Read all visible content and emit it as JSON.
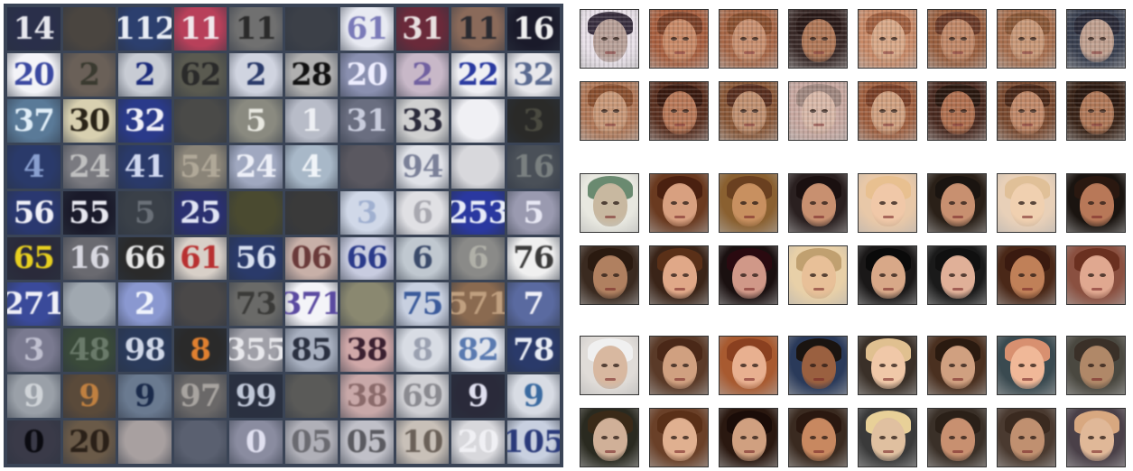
{
  "svhn_tiles": [
    "14",
    "",
    "112",
    "11",
    "11",
    "",
    "61",
    "31",
    "11",
    "16",
    "20",
    "2",
    "2",
    "62",
    "2",
    "28",
    "20",
    "2",
    "22",
    "32",
    "37",
    "30",
    "32",
    "",
    "5",
    "1",
    "31",
    "33",
    "",
    "3",
    "4",
    "24",
    "41",
    "54",
    "24",
    "4",
    "",
    "94",
    "",
    "16",
    "56",
    "55",
    "5",
    "25",
    "",
    "",
    "3",
    "6",
    "253",
    "5",
    "65",
    "16",
    "66",
    "61",
    "56",
    "06",
    "66",
    "6",
    "6",
    "76",
    "271",
    "",
    "2",
    "",
    "73",
    "371",
    "",
    "75",
    "571",
    "7",
    "3",
    "48",
    "98",
    "8",
    "355",
    "85",
    "38",
    "8",
    "82",
    "78",
    "9",
    "9",
    "9",
    "97",
    "99",
    "",
    "38",
    "69",
    "9",
    "9",
    "0",
    "20",
    "",
    "",
    "0",
    "05",
    "05",
    "10",
    "20",
    "105"
  ],
  "tile_colors": [
    [
      "#2a2f4a",
      "#e8e8ee"
    ],
    [
      "#4a4540",
      "#2a2622"
    ],
    [
      "#2c3f6e",
      "#e8ecf4"
    ],
    [
      "#b8405a",
      "#f0e8ec"
    ],
    [
      "#707070",
      "#2a2a2a"
    ],
    [
      "#3c4048",
      "#6a6a6a"
    ],
    [
      "#e8eaf2",
      "#7a7ab8"
    ],
    [
      "#6a2a3a",
      "#e8e0e0"
    ],
    [
      "#8a6a5a",
      "#2a2a30"
    ],
    [
      "#1a1a2a",
      "#f0f0f0"
    ],
    [
      "#f4f4f8",
      "#3a48a0"
    ],
    [
      "#6a6058",
      "#3a3a30"
    ],
    [
      "#c8ccd4",
      "#1a2a7a"
    ],
    [
      "#5a5a50",
      "#2a2a2a"
    ],
    [
      "#d0d4e0",
      "#2a3a6a"
    ],
    [
      "#b0b0b0",
      "#111111"
    ],
    [
      "#8a90b0",
      "#eeeeff"
    ],
    [
      "#c8b8c8",
      "#7060a0"
    ],
    [
      "#f0f0f4",
      "#2a3aa0"
    ],
    [
      "#e8e8ec",
      "#5a6a90"
    ],
    [
      "#5a7a98",
      "#e0eef8"
    ],
    [
      "#d8d0b0",
      "#2a2418"
    ],
    [
      "#2a3a8a",
      "#f0f0f8"
    ],
    [
      "#4a4a48",
      "#2a2a28"
    ],
    [
      "#8a8a80",
      "#e8e8e0"
    ],
    [
      "#b8bcc8",
      "#eef0f4"
    ],
    [
      "#6a6e80",
      "#c8ccdc"
    ],
    [
      "#d0d0d0",
      "#2a2a3a"
    ],
    [
      "#f0f0f4",
      "#ffffff"
    ],
    [
      "#2a2a28",
      "#4a4a40"
    ],
    [
      "#2a3a6a",
      "#8aa0d0"
    ],
    [
      "#7a7a80",
      "#c0c0c0"
    ],
    [
      "#2a3a6a",
      "#d0d8f0"
    ],
    [
      "#8a8478",
      "#b0a898"
    ],
    [
      "#a0a8c0",
      "#eef0f8"
    ],
    [
      "#a8b8c8",
      "#f0f4f8"
    ],
    [
      "#5a5860",
      "#7a7880"
    ],
    [
      "#e0e2e8",
      "#7a8098"
    ],
    [
      "#d8d8dc",
      "#f4f4f6"
    ],
    [
      "#4a5058",
      "#7a8080"
    ],
    [
      "#2a3870",
      "#f0f0f8"
    ],
    [
      "#1a1a2a",
      "#e8e8f0"
    ],
    [
      "#3a4048",
      "#6a7078"
    ],
    [
      "#2a3070",
      "#e0e4f4"
    ],
    [
      "#4a4a30",
      "#6a6a40"
    ],
    [
      "#3a3a3a",
      "#505050"
    ],
    [
      "#d0d8e8",
      "#a0b0d0"
    ],
    [
      "#e0e0e4",
      "#a8a8b0"
    ],
    [
      "#2a38a0",
      "#e8ecf8"
    ],
    [
      "#9a9ab0",
      "#e8e8f4"
    ],
    [
      "#2a2a3a",
      "#e8d020"
    ],
    [
      "#6a6a70",
      "#d8d8e0"
    ],
    [
      "#2a2a2a",
      "#e8e8e8"
    ],
    [
      "#d8d0c8",
      "#b83030"
    ],
    [
      "#2a3a6a",
      "#d8e0f0"
    ],
    [
      "#c8b0a8",
      "#6a3a3a"
    ],
    [
      "#c8cce0",
      "#2a3a8a"
    ],
    [
      "#c0c8d0",
      "#3a4a6a"
    ],
    [
      "#8a8a88",
      "#b0b0a8"
    ],
    [
      "#f0f0f0",
      "#3a3a3a"
    ],
    [
      "#3a4a9a",
      "#f0f0f8"
    ],
    [
      "#a0a8b0",
      "#c8ccd4"
    ],
    [
      "#8a98d0",
      "#f0f4fc"
    ],
    [
      "#4a4848",
      "#6a6868"
    ],
    [
      "#6a6a68",
      "#3a3a38"
    ],
    [
      "#f4f4f8",
      "#5a4aa0"
    ],
    [
      "#8a8870",
      "#6a6850"
    ],
    [
      "#c8d0e0",
      "#3a5a9a"
    ],
    [
      "#8a6a50",
      "#c0a080"
    ],
    [
      "#5a6aa0",
      "#f0f0f8"
    ],
    [
      "#7a7a90",
      "#c0c0d0"
    ],
    [
      "#3a4a3a",
      "#6a7a6a"
    ],
    [
      "#2a3a5a",
      "#d0d8e8"
    ],
    [
      "#2a2a2a",
      "#e08030"
    ],
    [
      "#a0a0a8",
      "#e8e8ec"
    ],
    [
      "#a8b0c0",
      "#2a3040"
    ],
    [
      "#d0a8a8",
      "#3a2030"
    ],
    [
      "#d8dce4",
      "#9aa0b0"
    ],
    [
      "#e0e4ec",
      "#5a7ab0"
    ],
    [
      "#2a3a6a",
      "#e8ecf4"
    ],
    [
      "#9aa0a8",
      "#d0d4d8"
    ],
    [
      "#5a4a3a",
      "#c08040"
    ],
    [
      "#6a7a90",
      "#1a2a4a"
    ],
    [
      "#6a6868",
      "#a8a4a0"
    ],
    [
      "#2a3040",
      "#c0c8d8"
    ],
    [
      "#5a5a58",
      "#7a7a78"
    ],
    [
      "#c8a8a8",
      "#8a6a6a"
    ],
    [
      "#d0d0d4",
      "#8a8a90"
    ],
    [
      "#2a2a3a",
      "#e0e0f0"
    ],
    [
      "#d8dce4",
      "#3a6aa0"
    ],
    [
      "#3a3a48",
      "#0a0a10"
    ],
    [
      "#6a5a48",
      "#2a2018"
    ],
    [
      "#a8a0a0",
      "#e0d8d8"
    ],
    [
      "#5a6070",
      "#8a98b0"
    ],
    [
      "#8a8ca0",
      "#e0e0f0"
    ],
    [
      "#b0b0b8",
      "#6a6a70"
    ],
    [
      "#c0c0c8",
      "#5a5a60"
    ],
    [
      "#c8c0b8",
      "#6a6058"
    ],
    [
      "#d8d8dc",
      "#f0f0f4"
    ],
    [
      "#c8d0e0",
      "#2a3a7a"
    ]
  ],
  "face_groups": [
    {
      "style": "noisy",
      "tiles": [
        [
          "#e8e0e8",
          "#b8a098",
          "#3a3040"
        ],
        [
          "#a86040",
          "#c88a68",
          "#7a4028"
        ],
        [
          "#a86848",
          "#c89070",
          "#8a5030"
        ],
        [
          "#3a2a28",
          "#b07858",
          "#2a1a18"
        ],
        [
          "#c88a68",
          "#d8a888",
          "#a06040"
        ],
        [
          "#9a6040",
          "#c08868",
          "#6a3a28"
        ],
        [
          "#a87050",
          "#c89878",
          "#8a5838"
        ],
        [
          "#3a4050",
          "#c0a090",
          "#2a2a38"
        ],
        [
          "#b07858",
          "#c89878",
          "#8a5030"
        ],
        [
          "#5a3020",
          "#b87858",
          "#3a1a10"
        ],
        [
          "#8a5838",
          "#c09070",
          "#5a3020"
        ],
        [
          "#c8a8a0",
          "#d8b8a8",
          "#a08880"
        ],
        [
          "#a06040",
          "#d0a080",
          "#7a4028"
        ],
        [
          "#4a2a20",
          "#b07050",
          "#2a1810"
        ],
        [
          "#7a4a30",
          "#c08868",
          "#4a2818"
        ],
        [
          "#3a2418",
          "#b07858",
          "#2a1810"
        ]
      ]
    },
    {
      "style": "smooth",
      "tiles": [
        [
          "#e8e8e0",
          "#c8b8a0",
          "#6a8a70"
        ],
        [
          "#6a3a20",
          "#d8a080",
          "#4a2010"
        ],
        [
          "#8a6030",
          "#c89060",
          "#6a4020"
        ],
        [
          "#2a2020",
          "#c89070",
          "#1a1010"
        ],
        [
          "#e8c8a8",
          "#f0c8a8",
          "#e8c090"
        ],
        [
          "#2a2018",
          "#c89070",
          "#1a1410"
        ],
        [
          "#e8d0b8",
          "#f0d0b0",
          "#e0c098"
        ],
        [
          "#1a1410",
          "#b87858",
          "#2a1810"
        ],
        [
          "#3a2a20",
          "#b08060",
          "#2a1a10"
        ],
        [
          "#3a2418",
          "#e0a888",
          "#5a3018"
        ],
        [
          "#1a1010",
          "#d09888",
          "#2a0a10"
        ],
        [
          "#e8d0a8",
          "#e8c098",
          "#c0a070"
        ],
        [
          "#1a1818",
          "#d8a888",
          "#0a0a0a"
        ],
        [
          "#1a1a1a",
          "#e0b098",
          "#101010"
        ],
        [
          "#4a2818",
          "#c08058",
          "#3a1a10"
        ],
        [
          "#8a5040",
          "#e0a890",
          "#6a3020"
        ]
      ]
    },
    {
      "style": "smooth",
      "tiles": [
        [
          "#e0dcd8",
          "#d8b8a0",
          "#f0f0f0"
        ],
        [
          "#5a3a28",
          "#d0a080",
          "#4a2818"
        ],
        [
          "#a85a30",
          "#e8b090",
          "#8a4020"
        ],
        [
          "#2a3a5a",
          "#9a6040",
          "#1a1410"
        ],
        [
          "#3a3028",
          "#f0c8a8",
          "#e0c090"
        ],
        [
          "#4a3020",
          "#d0a080",
          "#2a1a10"
        ],
        [
          "#3a4a50",
          "#f0b898",
          "#d89070"
        ],
        [
          "#4a4840",
          "#b08868",
          "#3a3028"
        ],
        [
          "#2a2a20",
          "#d0b098",
          "#3a2a18"
        ],
        [
          "#6a4028",
          "#e0b090",
          "#5a3018"
        ],
        [
          "#2a1810",
          "#d0a080",
          "#1a0c08"
        ],
        [
          "#3a2a20",
          "#c88860",
          "#2a1810"
        ],
        [
          "#3a3a3a",
          "#e0c0a0",
          "#e8d098"
        ],
        [
          "#3a3028",
          "#c89070",
          "#2a2018"
        ],
        [
          "#4a3a30",
          "#c09070",
          "#3a2a20"
        ],
        [
          "#4a4048",
          "#e0b898",
          "#d8a880"
        ]
      ]
    }
  ]
}
